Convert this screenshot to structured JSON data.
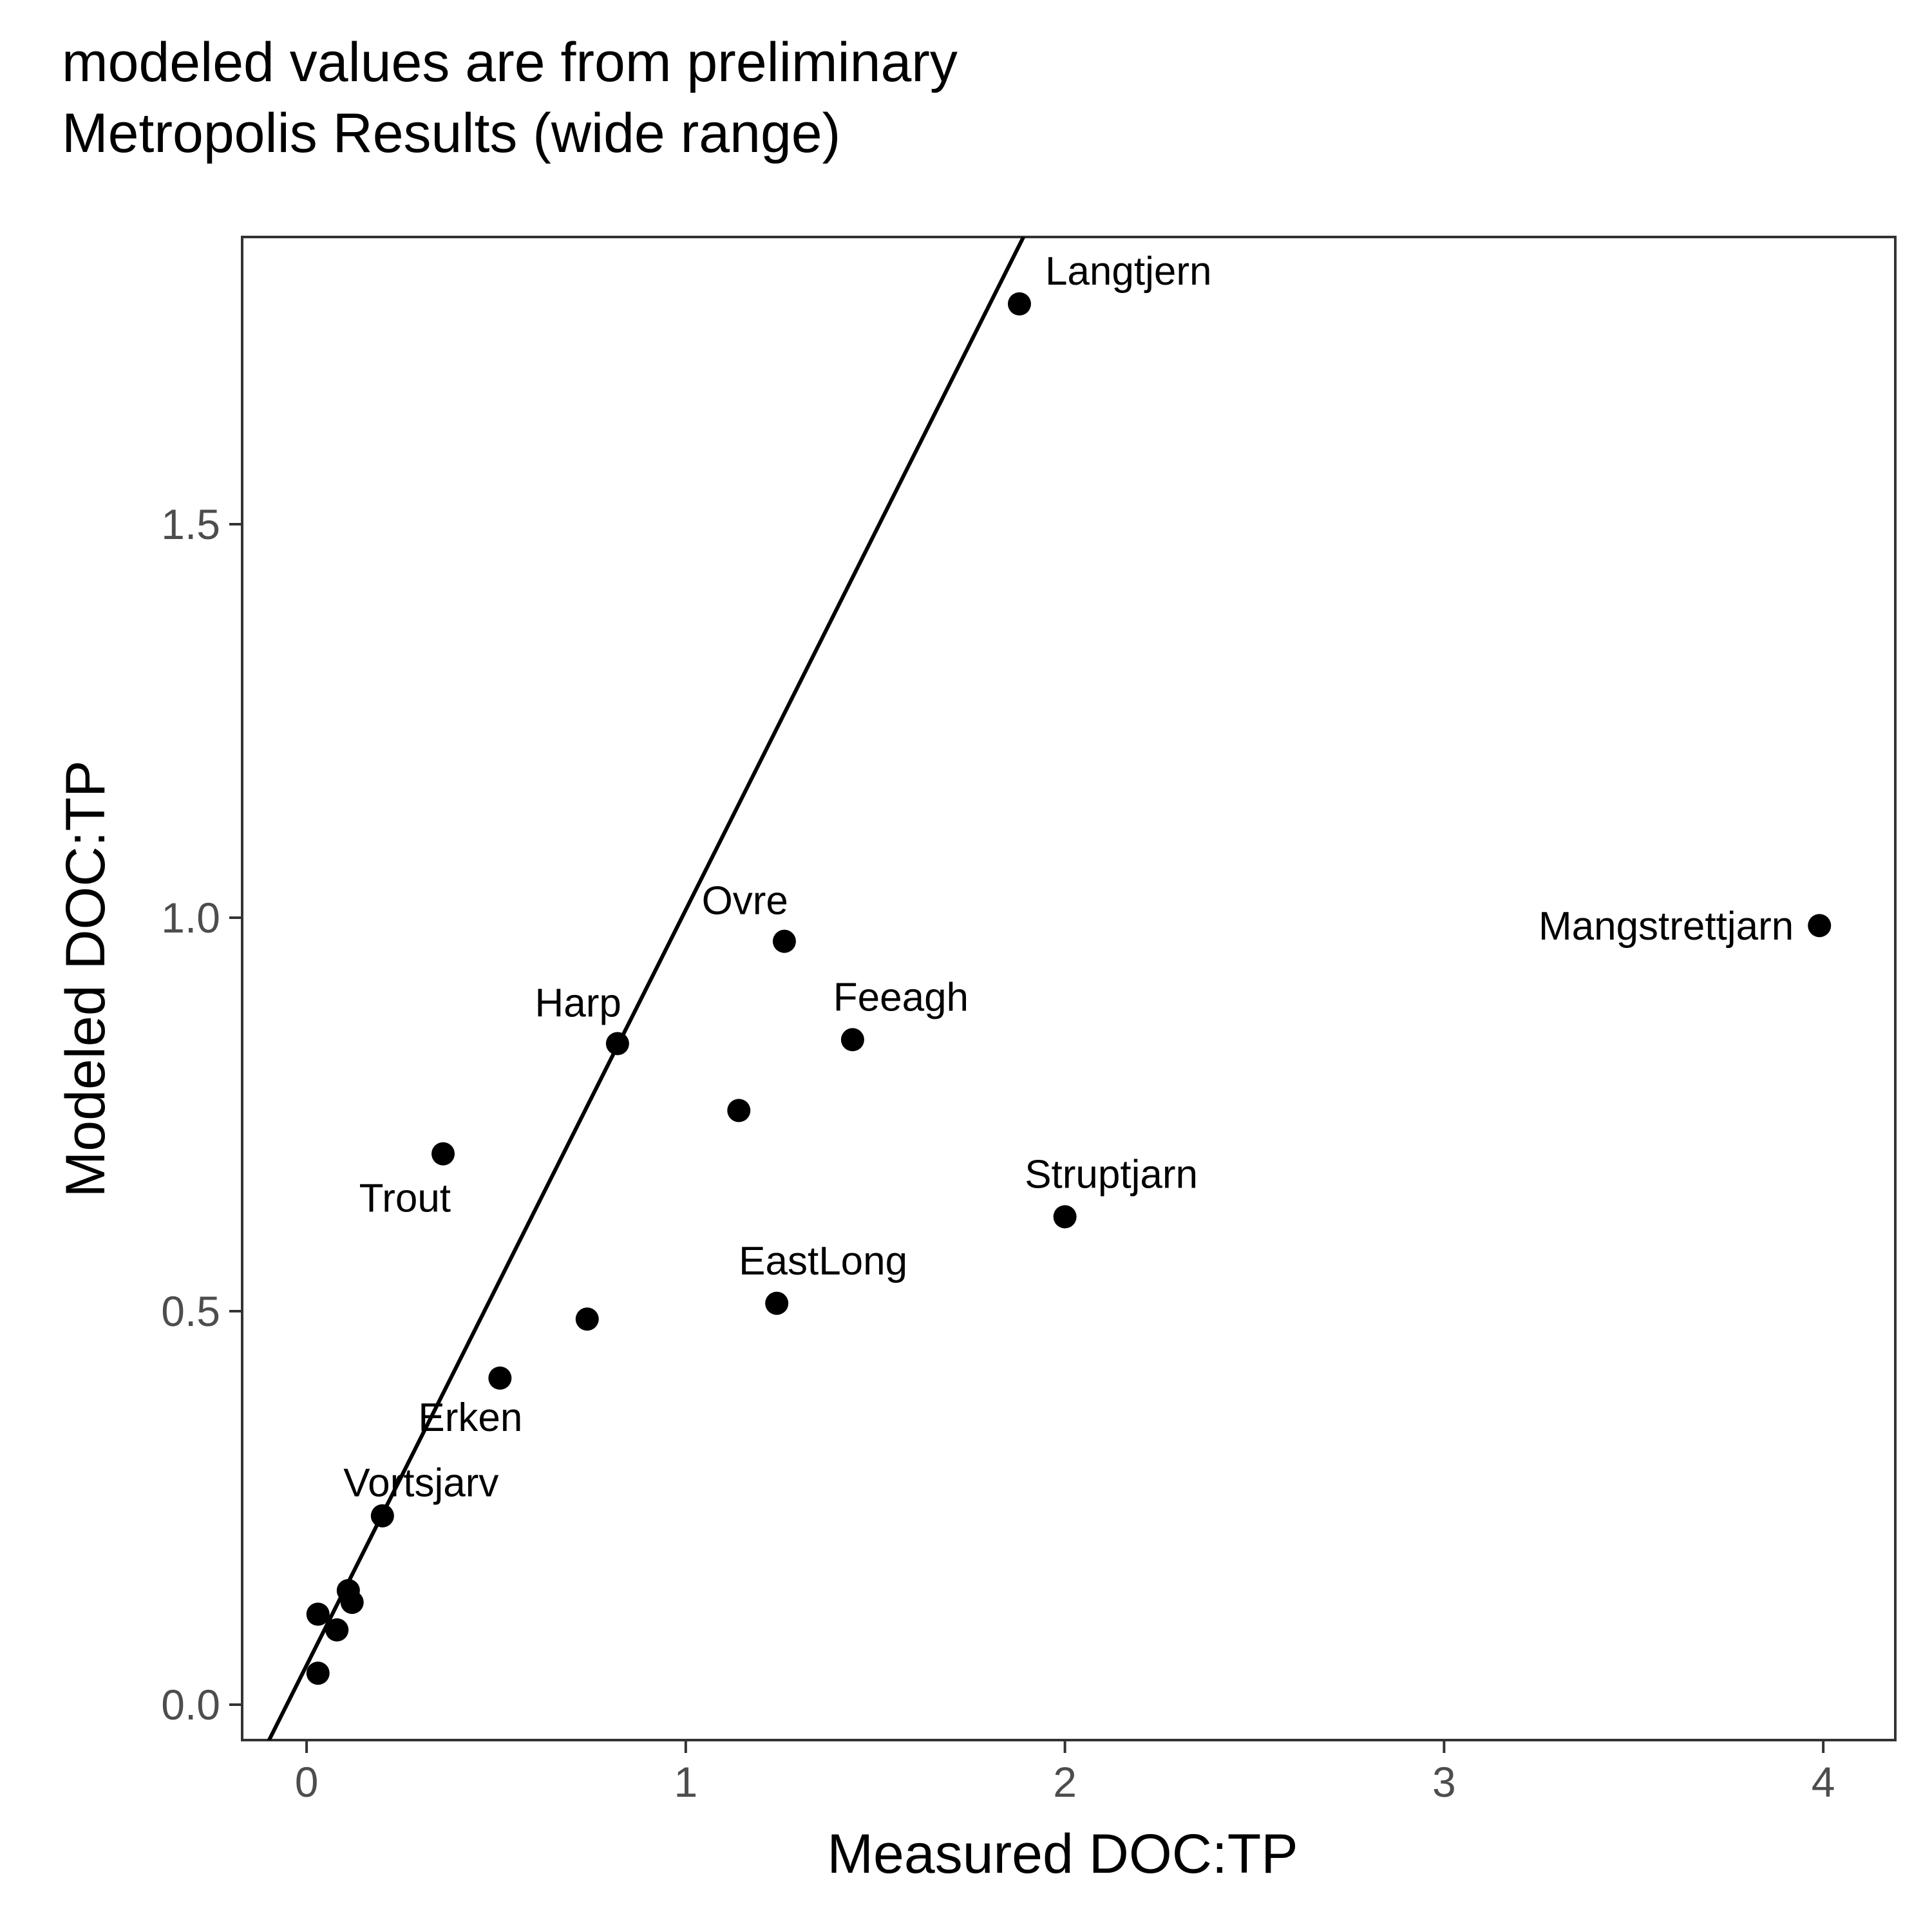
{
  "chart_data": {
    "type": "scatter",
    "title_lines": [
      "modeled values are from preliminary",
      "Metropolis Results (wide range)"
    ],
    "xlabel": "Measured DOC:TP",
    "ylabel": "Modeled DOC:TP",
    "xlim": [
      -0.17,
      4.19
    ],
    "ylim": [
      -0.045,
      1.865
    ],
    "x_ticks": [
      0,
      1,
      2,
      3,
      4
    ],
    "x_tick_labels": [
      "0",
      "1",
      "2",
      "3",
      "4"
    ],
    "y_ticks": [
      0.0,
      0.5,
      1.0,
      1.5
    ],
    "y_tick_labels": [
      "0.0",
      "0.5",
      "1.0",
      "1.5"
    ],
    "grid": false,
    "legend": "none",
    "reference_line": {
      "intercept": 0.05,
      "slope": 0.96
    },
    "points": [
      {
        "x": 1.88,
        "y": 1.78,
        "label": "Langtjern",
        "label_anchor": "start"
      },
      {
        "x": 3.99,
        "y": 0.99,
        "label": "Mangstrettjarn",
        "label_anchor": "end"
      },
      {
        "x": 1.26,
        "y": 0.97,
        "label": "Ovre",
        "label_anchor": "end"
      },
      {
        "x": 1.44,
        "y": 0.845,
        "label": "Feeagh",
        "label_anchor": "middle"
      },
      {
        "x": 0.82,
        "y": 0.84,
        "label": "Harp",
        "label_anchor": "end"
      },
      {
        "x": 1.14,
        "y": 0.755,
        "label": "",
        "label_anchor": "middle"
      },
      {
        "x": 0.36,
        "y": 0.7,
        "label": "Trout",
        "label_anchor": "end"
      },
      {
        "x": 2.0,
        "y": 0.62,
        "label": "Struptjarn",
        "label_anchor": "middle"
      },
      {
        "x": 1.24,
        "y": 0.51,
        "label": "EastLong",
        "label_anchor": "middle"
      },
      {
        "x": 0.74,
        "y": 0.49,
        "label": "",
        "label_anchor": "middle"
      },
      {
        "x": 0.51,
        "y": 0.415,
        "label": "Erken",
        "label_anchor": "end"
      },
      {
        "x": 0.2,
        "y": 0.24,
        "label": "Vortsjarv",
        "label_anchor": "middle"
      },
      {
        "x": 0.11,
        "y": 0.145,
        "label": "",
        "label_anchor": "middle"
      },
      {
        "x": 0.12,
        "y": 0.13,
        "label": "",
        "label_anchor": "middle"
      },
      {
        "x": 0.03,
        "y": 0.115,
        "label": "",
        "label_anchor": "middle"
      },
      {
        "x": 0.08,
        "y": 0.095,
        "label": "",
        "label_anchor": "middle"
      },
      {
        "x": 0.03,
        "y": 0.04,
        "label": "",
        "label_anchor": "middle"
      }
    ]
  }
}
